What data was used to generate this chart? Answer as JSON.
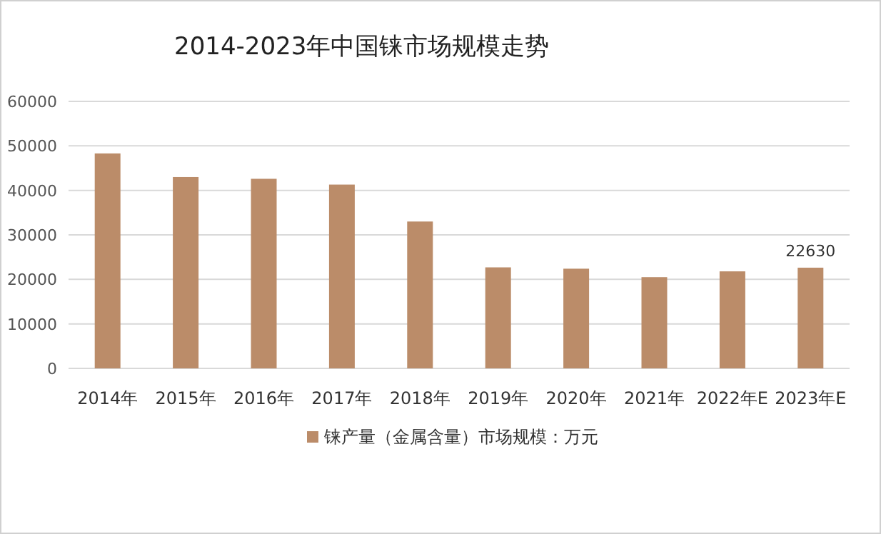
{
  "chart_data": {
    "type": "bar",
    "title": "2014-2023年中国铼市场规模走势",
    "categories": [
      "2014年",
      "2015年",
      "2016年",
      "2017年",
      "2018年",
      "2019年",
      "2020年",
      "2021年",
      "2022年E",
      "2023年E"
    ],
    "series": [
      {
        "name": "铼产量（金属含量）市场规模：万元",
        "color": "#bb8c69",
        "values": [
          48300,
          43000,
          42600,
          41300,
          33000,
          22700,
          22400,
          20500,
          21800,
          22630
        ],
        "value_labels": [
          null,
          null,
          null,
          null,
          null,
          null,
          null,
          null,
          null,
          "22630"
        ]
      }
    ],
    "ylim": [
      0,
      60000
    ],
    "yticks": [
      0,
      10000,
      20000,
      30000,
      40000,
      50000,
      60000
    ],
    "grid": "y",
    "legend": "bottom"
  }
}
